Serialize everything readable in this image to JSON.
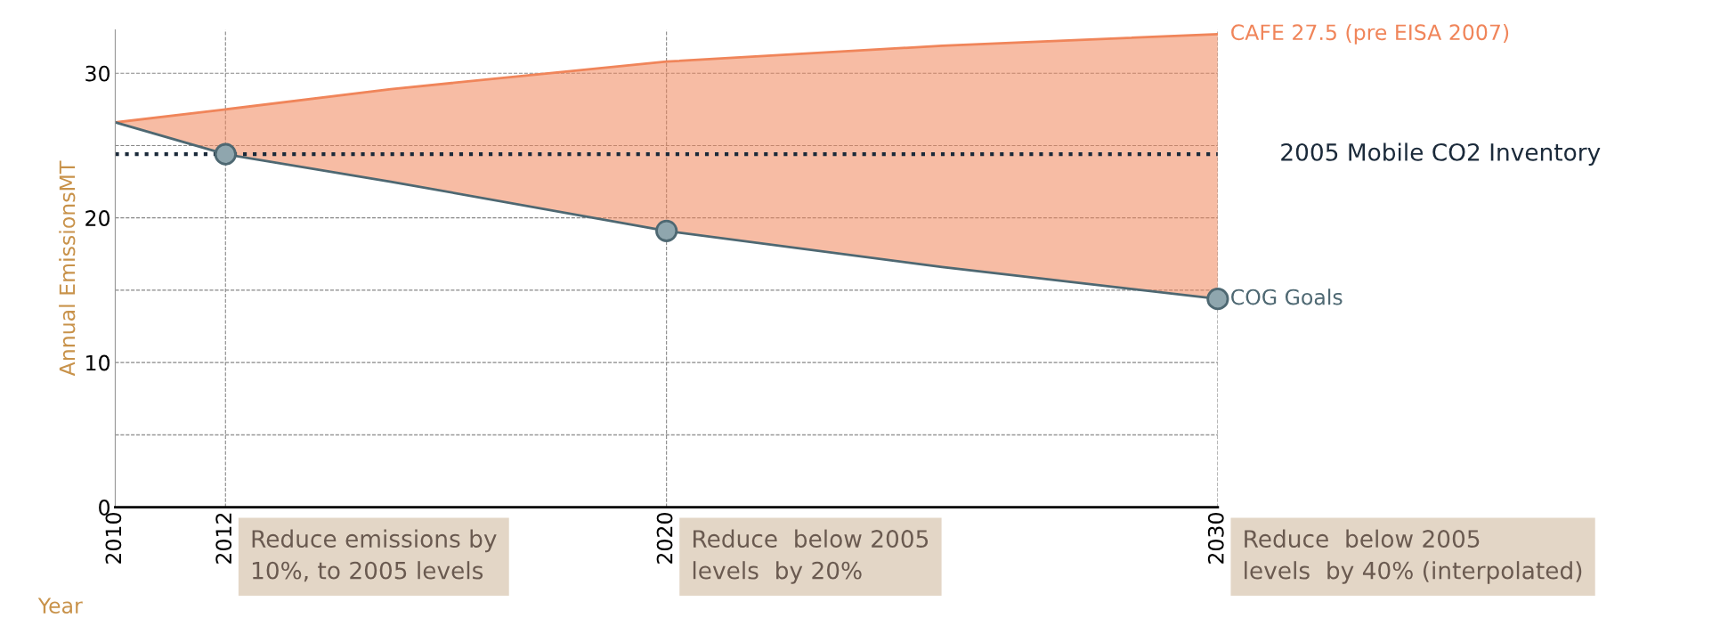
{
  "chart_data": {
    "type": "line",
    "xlabel": "Year",
    "ylabel": "Annual EmissionsMT",
    "x": [
      2010,
      2012,
      2015,
      2020,
      2025,
      2030
    ],
    "series": [
      {
        "name": "CAFE 27.5 (pre EISA 2007)",
        "color": "#f0855a",
        "values": [
          26.6,
          27.5,
          28.9,
          30.8,
          31.9,
          32.7
        ],
        "lower": [
          26.6,
          24.4,
          22.5,
          19.1,
          16.6,
          14.4
        ],
        "upper": [
          26.6,
          27.5,
          28.9,
          30.8,
          31.9,
          32.7
        ]
      },
      {
        "name": "COG Goals",
        "type": "line",
        "color": "#4e6872",
        "marker": "none",
        "values": [
          26.6,
          24.4,
          22.5,
          19.1,
          16.6,
          14.4
        ]
      },
      {
        "type": "scatter",
        "color": "#8fa6ae",
        "marker": "circle",
        "x": [
          2012,
          2020,
          2030
        ],
        "values": [
          24.4,
          19.1,
          14.4
        ]
      }
    ],
    "xlim": [
      2010,
      2030
    ],
    "ylim": [
      0,
      33
    ],
    "xticks": [
      2010,
      2012,
      2020,
      2030
    ],
    "yticks": [
      0,
      {
        "value": 5,
        "label": null
      },
      10,
      {
        "value": 15,
        "label": null
      },
      20,
      {
        "value": 25,
        "label": null
      },
      30
    ],
    "grid": true,
    "legend": false,
    "ref_lines": [
      {
        "axis": "y",
        "value": 24.4,
        "label": "2005 Mobile CO2 Inventory",
        "color": "#1b2a3a",
        "line_style": "dotted"
      }
    ],
    "annotations": [
      "Reduce emissions by\n10%, to 2005 levels",
      "Reduce  below 2005\nlevels  by 20%",
      "Reduce  below 2005\nlevels  by 40% (interpolated)"
    ]
  }
}
